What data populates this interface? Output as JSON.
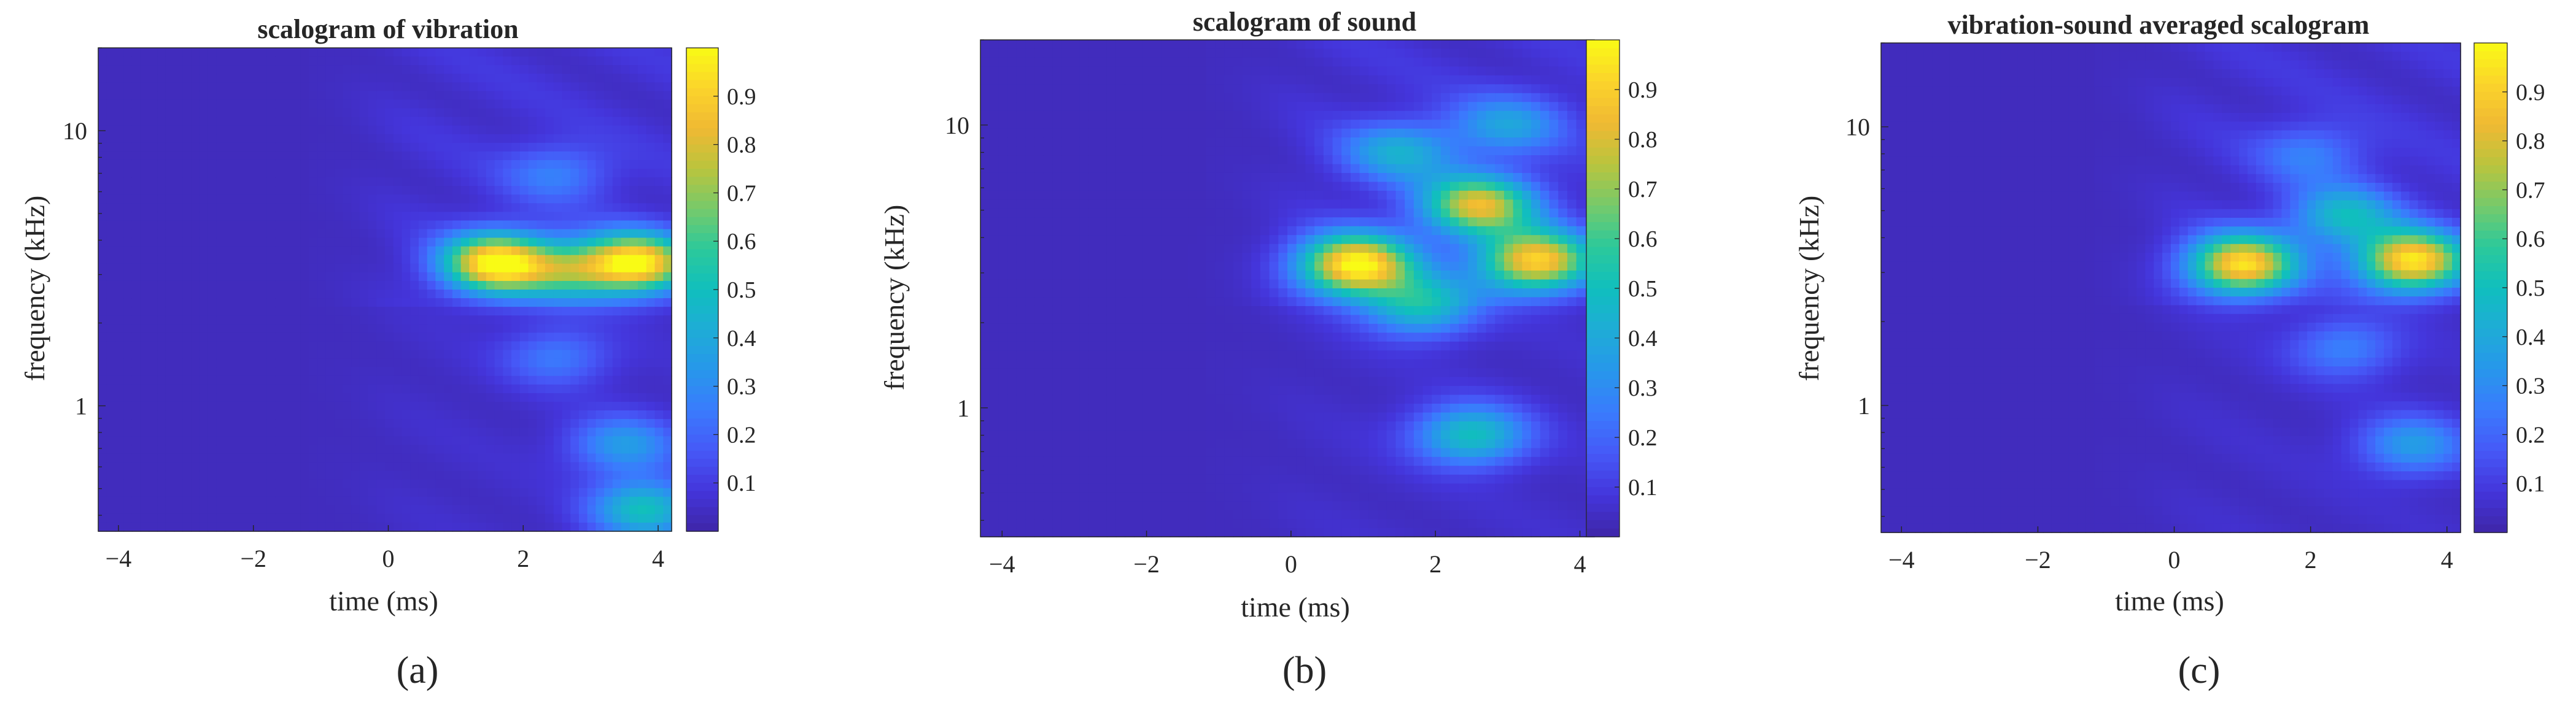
{
  "figure": {
    "panels": [
      {
        "id": "a",
        "title": "scalogram of vibration",
        "sublabel": "(a)"
      },
      {
        "id": "b",
        "title": "scalogram of sound",
        "sublabel": "(b)"
      },
      {
        "id": "c",
        "title": "vibration-sound averaged scalogram",
        "sublabel": "(c)"
      }
    ]
  },
  "chart_data": [
    {
      "type": "heatmap",
      "title": "scalogram of vibration",
      "xlabel": "time (ms)",
      "ylabel": "frequency (kHz)",
      "xlim": [
        -4.3,
        4.2
      ],
      "ylim": [
        0.35,
        20
      ],
      "yscale": "log",
      "xticks": [
        -4,
        -2,
        0,
        2,
        4
      ],
      "xtick_labels": [
        "−4",
        "−2",
        "0",
        "2",
        "4"
      ],
      "yticks": [
        1,
        10
      ],
      "ytick_labels": [
        "1",
        "10"
      ],
      "colorbar": {
        "range": [
          0,
          1
        ],
        "ticks": [
          0.1,
          0.2,
          0.3,
          0.4,
          0.5,
          0.6,
          0.7,
          0.8,
          0.9
        ],
        "tick_labels": [
          "0.1",
          "0.2",
          "0.3",
          "0.4",
          "0.5",
          "0.6",
          "0.7",
          "0.8",
          "0.9"
        ],
        "colormap": "parula"
      },
      "features": [
        {
          "t": 1.6,
          "f": 3.3,
          "amp": 0.95
        },
        {
          "t": 3.7,
          "f": 3.3,
          "amp": 0.9
        },
        {
          "t": 2.7,
          "f": 3.1,
          "amp": 0.45
        },
        {
          "t": 3.5,
          "f": 0.72,
          "amp": 0.3
        },
        {
          "t": 3.8,
          "f": 0.42,
          "amp": 0.45
        },
        {
          "t": 2.5,
          "f": 7.0,
          "amp": 0.2
        },
        {
          "t": 2.5,
          "f": 1.5,
          "amp": 0.2
        }
      ]
    },
    {
      "type": "heatmap",
      "title": "scalogram of sound",
      "xlabel": "time (ms)",
      "ylabel": "frequency (kHz)",
      "xlim": [
        -4.3,
        4.2
      ],
      "ylim": [
        0.35,
        20
      ],
      "yscale": "log",
      "xticks": [
        -4,
        -2,
        0,
        2,
        4
      ],
      "xtick_labels": [
        "−4",
        "−2",
        "0",
        "2",
        "4"
      ],
      "yticks": [
        1,
        10
      ],
      "ytick_labels": [
        "1",
        "10"
      ],
      "colorbar": {
        "range": [
          0,
          1
        ],
        "ticks": [
          0.1,
          0.2,
          0.3,
          0.4,
          0.5,
          0.6,
          0.7,
          0.8,
          0.9
        ],
        "tick_labels": [
          "0.1",
          "0.2",
          "0.3",
          "0.4",
          "0.5",
          "0.6",
          "0.7",
          "0.8",
          "0.9"
        ],
        "colormap": "parula"
      },
      "features": [
        {
          "t": 0.9,
          "f": 3.2,
          "amp": 0.95
        },
        {
          "t": 3.4,
          "f": 3.3,
          "amp": 0.85
        },
        {
          "t": 2.6,
          "f": 5.2,
          "amp": 0.75
        },
        {
          "t": 1.8,
          "f": 2.3,
          "amp": 0.45
        },
        {
          "t": 2.5,
          "f": 0.8,
          "amp": 0.45
        },
        {
          "t": 1.5,
          "f": 8.0,
          "amp": 0.35
        },
        {
          "t": 3.0,
          "f": 10.0,
          "amp": 0.3
        }
      ]
    },
    {
      "type": "heatmap",
      "title": "vibration-sound averaged scalogram",
      "xlabel": "time (ms)",
      "ylabel": "frequency (kHz)",
      "xlim": [
        -4.3,
        4.2
      ],
      "ylim": [
        0.35,
        20
      ],
      "yscale": "log",
      "xticks": [
        -4,
        -2,
        0,
        2,
        4
      ],
      "xtick_labels": [
        "−4",
        "−2",
        "0",
        "2",
        "4"
      ],
      "yticks": [
        1,
        10
      ],
      "ytick_labels": [
        "1",
        "10"
      ],
      "colorbar": {
        "range": [
          0,
          1
        ],
        "ticks": [
          0.1,
          0.2,
          0.3,
          0.4,
          0.5,
          0.6,
          0.7,
          0.8,
          0.9
        ],
        "tick_labels": [
          "0.1",
          "0.2",
          "0.3",
          "0.4",
          "0.5",
          "0.6",
          "0.7",
          "0.8",
          "0.9"
        ],
        "colormap": "parula"
      },
      "features": [
        {
          "t": 1.0,
          "f": 3.2,
          "amp": 0.88
        },
        {
          "t": 3.5,
          "f": 3.3,
          "amp": 0.9
        },
        {
          "t": 2.5,
          "f": 4.8,
          "amp": 0.4
        },
        {
          "t": 3.5,
          "f": 0.72,
          "amp": 0.3
        },
        {
          "t": 2.0,
          "f": 8.0,
          "amp": 0.2
        },
        {
          "t": 2.5,
          "f": 1.6,
          "amp": 0.22
        }
      ]
    }
  ]
}
